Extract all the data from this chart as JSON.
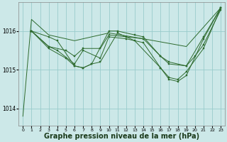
{
  "background_color": "#cce8e8",
  "grid_color": "#99cccc",
  "line_color": "#2d6a2d",
  "marker_color": "#2d6a2d",
  "xlabel": "Graphe pression niveau de la mer (hPa)",
  "xlabel_fontsize": 7,
  "ylim": [
    1013.55,
    1016.75
  ],
  "xlim": [
    -0.5,
    23.5
  ],
  "yticks": [
    1014,
    1015,
    1016
  ],
  "xticks": [
    0,
    1,
    2,
    3,
    4,
    5,
    6,
    7,
    8,
    9,
    10,
    11,
    12,
    13,
    14,
    15,
    16,
    17,
    18,
    19,
    20,
    21,
    22,
    23
  ],
  "series": [
    {
      "x": [
        0,
        1,
        3,
        6,
        10,
        14,
        19,
        23
      ],
      "y": [
        1013.8,
        1016.3,
        1015.9,
        1015.75,
        1015.95,
        1015.8,
        1015.6,
        1016.6
      ],
      "has_markers": false
    },
    {
      "x": [
        1,
        3,
        4,
        6,
        7,
        8,
        10,
        11,
        13,
        14,
        16,
        17,
        19,
        20,
        21,
        23
      ],
      "y": [
        1016.0,
        1015.85,
        1015.75,
        1015.1,
        1015.05,
        1015.15,
        1016.0,
        1016.0,
        1015.9,
        1015.85,
        1015.35,
        1015.15,
        1015.1,
        1015.35,
        1015.65,
        1016.55
      ],
      "has_markers": true
    },
    {
      "x": [
        1,
        3,
        5,
        6,
        7,
        9,
        10,
        12,
        14,
        16,
        17,
        19,
        21,
        23
      ],
      "y": [
        1016.0,
        1015.6,
        1015.5,
        1015.35,
        1015.55,
        1015.55,
        1015.9,
        1015.85,
        1015.8,
        1015.35,
        1015.2,
        1015.1,
        1015.85,
        1016.6
      ],
      "has_markers": true
    },
    {
      "x": [
        1,
        3,
        4,
        6,
        7,
        9,
        10,
        12,
        14,
        16,
        17,
        18,
        19,
        21,
        23
      ],
      "y": [
        1016.0,
        1015.6,
        1015.5,
        1015.15,
        1015.5,
        1015.3,
        1015.85,
        1015.8,
        1015.7,
        1015.05,
        1014.8,
        1014.75,
        1014.95,
        1015.55,
        1016.6
      ],
      "has_markers": true
    },
    {
      "x": [
        1,
        3,
        5,
        6,
        7,
        8,
        9,
        11,
        13,
        16,
        17,
        18,
        19,
        21,
        23
      ],
      "y": [
        1016.0,
        1015.55,
        1015.3,
        1015.1,
        1015.05,
        1015.15,
        1015.2,
        1015.95,
        1015.75,
        1015.05,
        1014.75,
        1014.7,
        1014.85,
        1015.8,
        1016.6
      ],
      "has_markers": true
    }
  ]
}
